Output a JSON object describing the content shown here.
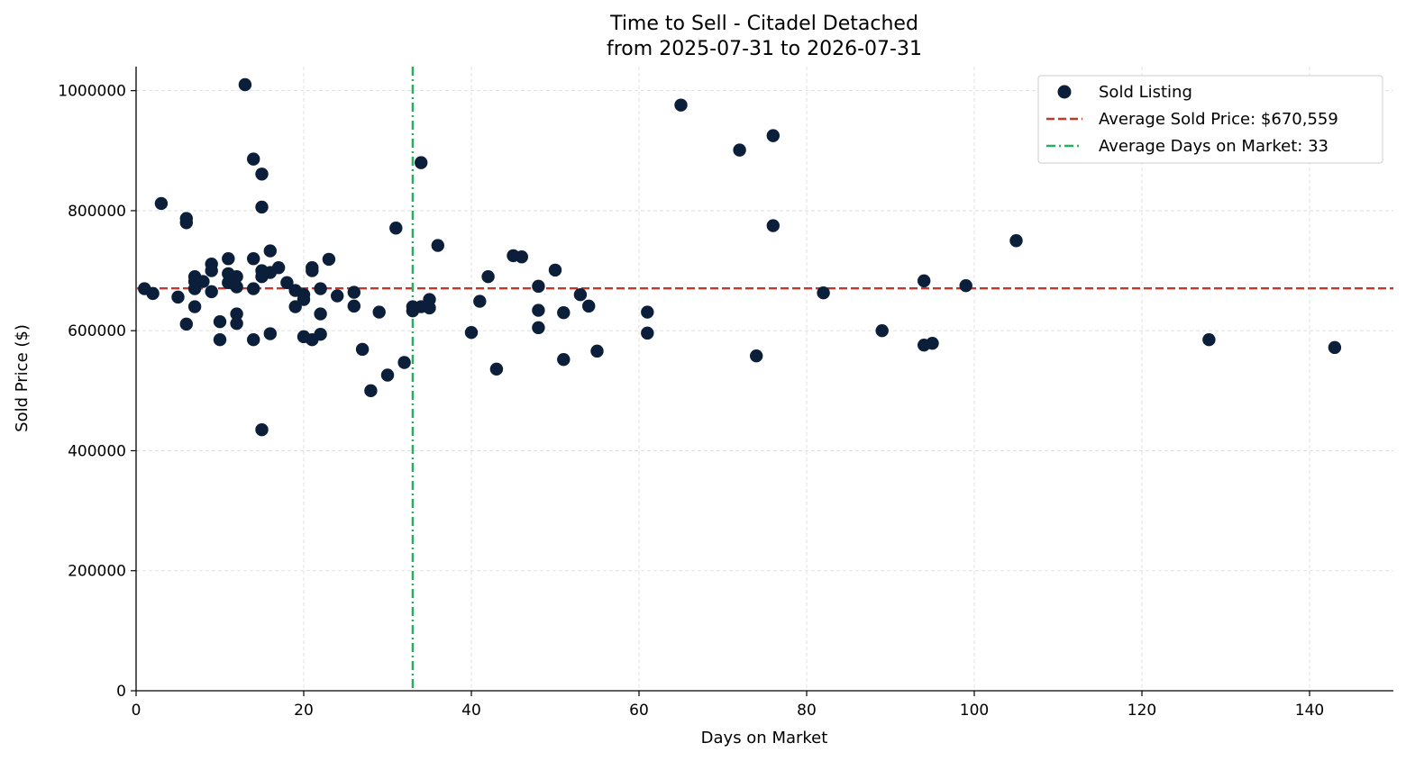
{
  "chart_data": {
    "type": "scatter",
    "title": "Time to Sell - Citadel Detached",
    "subtitle": "from 2025-07-31 to 2026-07-31",
    "xlabel": "Days on Market",
    "ylabel": "Sold Price ($)",
    "xlim": [
      0,
      150
    ],
    "ylim": [
      0,
      1040000
    ],
    "xticks": [
      0,
      20,
      40,
      60,
      80,
      100,
      120,
      140
    ],
    "yticks": [
      0,
      200000,
      400000,
      600000,
      800000,
      1000000
    ],
    "grid": true,
    "legend_position": "top-right",
    "series": [
      {
        "name": "Sold Listing",
        "kind": "scatter",
        "color": "#0b1f3a",
        "points": [
          [
            1,
            670000
          ],
          [
            2,
            662000
          ],
          [
            3,
            812000
          ],
          [
            5,
            656000
          ],
          [
            6,
            787000
          ],
          [
            6,
            780000
          ],
          [
            6,
            611000
          ],
          [
            7,
            690000
          ],
          [
            7,
            682000
          ],
          [
            7,
            670000
          ],
          [
            7,
            640000
          ],
          [
            8,
            682000
          ],
          [
            9,
            711000
          ],
          [
            9,
            700000
          ],
          [
            9,
            665000
          ],
          [
            10,
            615000
          ],
          [
            10,
            585000
          ],
          [
            11,
            720000
          ],
          [
            11,
            695000
          ],
          [
            11,
            680000
          ],
          [
            12,
            690000
          ],
          [
            12,
            673000
          ],
          [
            12,
            628000
          ],
          [
            12,
            612000
          ],
          [
            13,
            1010000
          ],
          [
            14,
            886000
          ],
          [
            14,
            720000
          ],
          [
            14,
            670000
          ],
          [
            14,
            585000
          ],
          [
            15,
            861000
          ],
          [
            15,
            806000
          ],
          [
            15,
            700000
          ],
          [
            15,
            690000
          ],
          [
            15,
            435000
          ],
          [
            16,
            733000
          ],
          [
            16,
            697000
          ],
          [
            16,
            595000
          ],
          [
            17,
            705000
          ],
          [
            18,
            680000
          ],
          [
            19,
            667000
          ],
          [
            19,
            640000
          ],
          [
            20,
            660000
          ],
          [
            20,
            652000
          ],
          [
            20,
            590000
          ],
          [
            21,
            705000
          ],
          [
            21,
            700000
          ],
          [
            21,
            585000
          ],
          [
            22,
            670000
          ],
          [
            22,
            628000
          ],
          [
            22,
            594000
          ],
          [
            23,
            719000
          ],
          [
            24,
            658000
          ],
          [
            26,
            664000
          ],
          [
            26,
            641000
          ],
          [
            27,
            569000
          ],
          [
            28,
            500000
          ],
          [
            29,
            631000
          ],
          [
            30,
            526000
          ],
          [
            31,
            771000
          ],
          [
            32,
            547000
          ],
          [
            33,
            640000
          ],
          [
            33,
            633000
          ],
          [
            34,
            880000
          ],
          [
            34,
            640000
          ],
          [
            35,
            652000
          ],
          [
            35,
            638000
          ],
          [
            36,
            742000
          ],
          [
            40,
            597000
          ],
          [
            41,
            649000
          ],
          [
            42,
            690000
          ],
          [
            43,
            536000
          ],
          [
            45,
            725000
          ],
          [
            46,
            723000
          ],
          [
            48,
            674000
          ],
          [
            48,
            634000
          ],
          [
            48,
            605000
          ],
          [
            50,
            701000
          ],
          [
            51,
            630000
          ],
          [
            51,
            552000
          ],
          [
            53,
            660000
          ],
          [
            54,
            641000
          ],
          [
            55,
            566000
          ],
          [
            61,
            631000
          ],
          [
            61,
            596000
          ],
          [
            65,
            976000
          ],
          [
            72,
            901000
          ],
          [
            74,
            558000
          ],
          [
            76,
            925000
          ],
          [
            76,
            775000
          ],
          [
            82,
            663000
          ],
          [
            89,
            600000
          ],
          [
            94,
            683000
          ],
          [
            94,
            576000
          ],
          [
            95,
            579000
          ],
          [
            99,
            675000
          ],
          [
            105,
            750000
          ],
          [
            128,
            585000
          ],
          [
            143,
            572000
          ]
        ]
      },
      {
        "name": "Average Sold Price: $670,559",
        "kind": "hline",
        "value": 670559,
        "color": "#c0392b",
        "style": "dashed"
      },
      {
        "name": "Average Days on Market: 33",
        "kind": "vline",
        "value": 33,
        "color": "#27ae60",
        "style": "dashdot"
      }
    ]
  }
}
